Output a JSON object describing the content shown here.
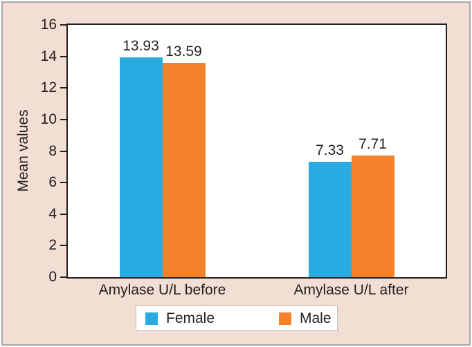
{
  "figure": {
    "background": "#f2ded3",
    "frame_border_color": "#a6a6a6",
    "axis_color": "#231f20",
    "text_color": "#231f20",
    "legend_border_color": "#bcbcbc"
  },
  "chart_data": {
    "type": "bar",
    "title": "",
    "xlabel": "",
    "ylabel": "Mean values",
    "ylim": [
      0,
      16
    ],
    "yticks": [
      0,
      2,
      4,
      6,
      8,
      10,
      12,
      14,
      16
    ],
    "grid": false,
    "legend_position": "bottom",
    "categories": [
      "Amylase U/L before",
      "Amylase U/L after"
    ],
    "series": [
      {
        "name": "Female",
        "color": "#29abe2",
        "values": [
          13.93,
          7.33
        ]
      },
      {
        "name": "Male",
        "color": "#f5822a",
        "values": [
          13.59,
          7.71
        ]
      }
    ],
    "value_labels": [
      "13.93",
      "13.59",
      "7.33",
      "7.71"
    ]
  }
}
